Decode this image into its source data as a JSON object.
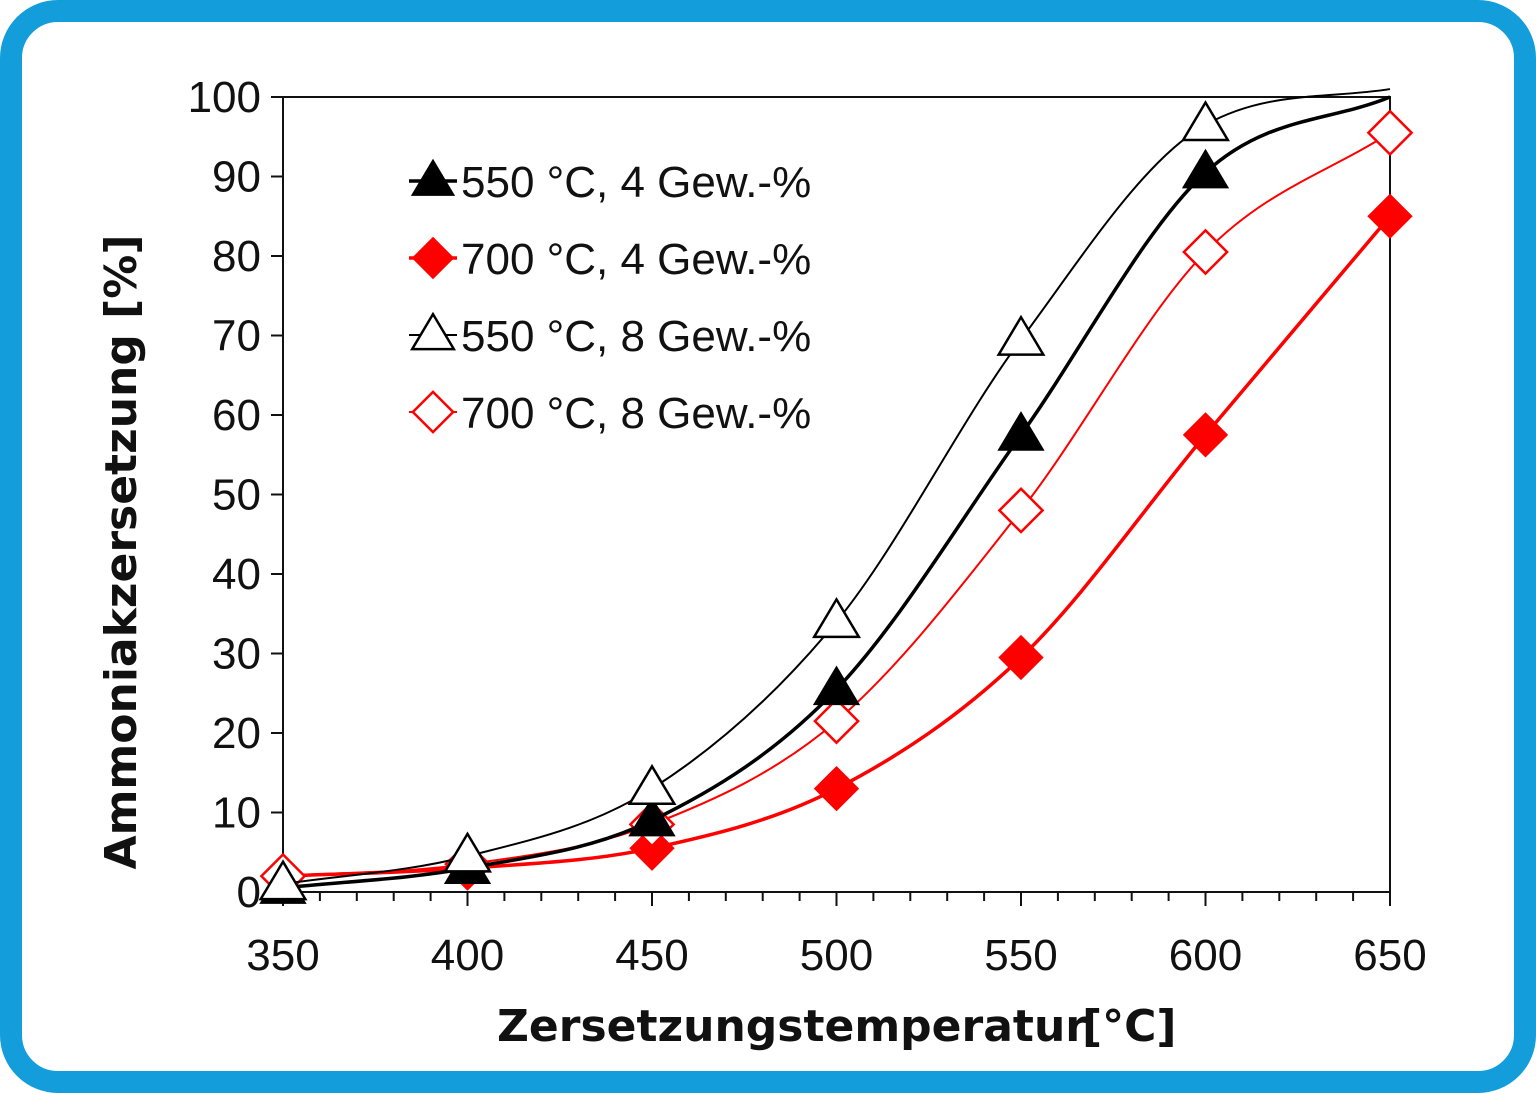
{
  "chart_data": {
    "type": "line",
    "title": "",
    "xlabel": "Zersetzungstemperatur",
    "xunit": "[°C]",
    "ylabel": "Ammoniakzersetzung [%]",
    "xlim": [
      350,
      650
    ],
    "ylim": [
      0,
      100
    ],
    "x_ticks": [
      "350",
      "400",
      "450",
      "500",
      "550",
      "600",
      "650"
    ],
    "y_ticks": [
      "0",
      "10",
      "20",
      "30",
      "40",
      "50",
      "60",
      "70",
      "80",
      "90",
      "100"
    ],
    "legend_position": "top-left",
    "grid": false,
    "x": [
      350,
      400,
      450,
      500,
      550,
      600,
      650
    ],
    "series": [
      {
        "name": "550 °C, 4 Gew.-%",
        "color": "#000000",
        "marker": "triangle",
        "filled": true,
        "values": [
          0.5,
          3.0,
          9.0,
          25.5,
          57.5,
          90.5,
          100
        ]
      },
      {
        "name": "700 °C, 4 Gew.-%",
        "color": "#ff0000",
        "marker": "diamond",
        "filled": true,
        "values": [
          2.0,
          3.0,
          5.5,
          13.0,
          29.5,
          57.5,
          85.0
        ]
      },
      {
        "name": "550 °C, 8 Gew.-%",
        "color": "#000000",
        "marker": "triangle",
        "filled": false,
        "values": [
          1.0,
          4.5,
          13.0,
          34.0,
          69.5,
          96.5,
          101.0
        ]
      },
      {
        "name": "700 °C, 8 Gew.-%",
        "color": "#ff0000",
        "marker": "diamond",
        "filled": false,
        "values": [
          2.0,
          3.5,
          8.5,
          21.5,
          48.0,
          80.5,
          95.5
        ]
      }
    ]
  }
}
